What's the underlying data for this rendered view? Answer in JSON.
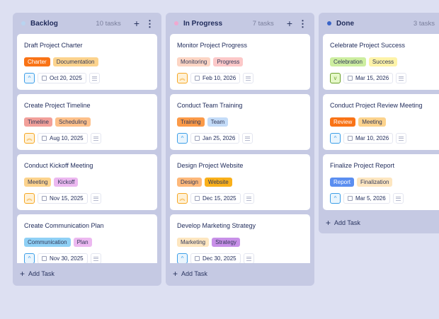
{
  "columns": [
    {
      "title": "Backlog",
      "count": "10 tasks",
      "dot": "#b8d4f0",
      "cards": [
        {
          "title": "Draft Project Charter",
          "tags": [
            {
              "label": "Charter",
              "bg": "#f97316",
              "fg": "#ffffff"
            },
            {
              "label": "Documentation",
              "bg": "#fcd38d",
              "fg": "#333a5a"
            }
          ],
          "priority": "up",
          "date": "Oct 20, 2025"
        },
        {
          "title": "Create Project Timeline",
          "tags": [
            {
              "label": "Timeline",
              "bg": "#f2a09a",
              "fg": "#333a5a"
            },
            {
              "label": "Scheduling",
              "bg": "#fdc08a",
              "fg": "#333a5a"
            }
          ],
          "priority": "double-up",
          "date": "Aug 10, 2025"
        },
        {
          "title": "Conduct Kickoff Meeting",
          "tags": [
            {
              "label": "Meeting",
              "bg": "#fcd38d",
              "fg": "#333a5a"
            },
            {
              "label": "Kickoff",
              "bg": "#ecb8f0",
              "fg": "#333a5a"
            }
          ],
          "priority": "double-up",
          "date": "Nov 15, 2025"
        },
        {
          "title": "Create Communication Plan",
          "tags": [
            {
              "label": "Communication",
              "bg": "#8fd0f5",
              "fg": "#333a5a"
            },
            {
              "label": "Plan",
              "bg": "#ecb8f0",
              "fg": "#333a5a"
            }
          ],
          "priority": "up",
          "date": "Nov 30, 2025"
        }
      ]
    },
    {
      "title": "In Progress",
      "count": "7 tasks",
      "dot": "#f0a8d0",
      "cards": [
        {
          "title": "Monitor Project Progress",
          "tags": [
            {
              "label": "Monitoring",
              "bg": "#fcd5c4",
              "fg": "#333a5a"
            },
            {
              "label": "Progress",
              "bg": "#fcc8c8",
              "fg": "#333a5a"
            }
          ],
          "priority": "double-up",
          "date": "Feb 10, 2026"
        },
        {
          "title": "Conduct Team Training",
          "tags": [
            {
              "label": "Training",
              "bg": "#fb9a48",
              "fg": "#333a5a"
            },
            {
              "label": "Team",
              "bg": "#c4dcf8",
              "fg": "#333a5a"
            }
          ],
          "priority": "up",
          "date": "Jan 25, 2026"
        },
        {
          "title": "Design Project Website",
          "tags": [
            {
              "label": "Design",
              "bg": "#fdb87a",
              "fg": "#333a5a"
            },
            {
              "label": "Website",
              "bg": "#f9b01a",
              "fg": "#333a5a"
            }
          ],
          "priority": "double-up",
          "date": "Dec 15, 2025"
        },
        {
          "title": "Develop Marketing Strategy",
          "tags": [
            {
              "label": "Marketing",
              "bg": "#fde6c0",
              "fg": "#333a5a"
            },
            {
              "label": "Strategy",
              "bg": "#c890e8",
              "fg": "#333a5a"
            }
          ],
          "priority": "up",
          "date": "Dec 30, 2025"
        }
      ]
    },
    {
      "title": "Done",
      "count": "3 tasks",
      "dot": "#3a64c8",
      "cards": [
        {
          "title": "Celebrate Project Success",
          "tags": [
            {
              "label": "Celebration",
              "bg": "#cdeea0",
              "fg": "#333a5a"
            },
            {
              "label": "Success",
              "bg": "#fdf3a8",
              "fg": "#333a5a"
            }
          ],
          "priority": "down",
          "date": "Mar 15, 2026"
        },
        {
          "title": "Conduct Project Review Meeting",
          "tags": [
            {
              "label": "Review",
              "bg": "#f97316",
              "fg": "#ffffff"
            },
            {
              "label": "Meeting",
              "bg": "#fcd38d",
              "fg": "#333a5a"
            }
          ],
          "priority": "up",
          "date": "Mar 10, 2026"
        },
        {
          "title": "Finalize Project Report",
          "tags": [
            {
              "label": "Report",
              "bg": "#5b8ef0",
              "fg": "#ffffff"
            },
            {
              "label": "Finalization",
              "bg": "#fde6c0",
              "fg": "#333a5a"
            }
          ],
          "priority": "up",
          "date": "Mar 5, 2026"
        }
      ]
    }
  ],
  "add_task_label": "Add Task",
  "priority_styles": {
    "up": {
      "glyph": "^",
      "color": "#3b9ee8",
      "bg": "#eaf5fd"
    },
    "double-up": {
      "glyph": "︽",
      "color": "#f5a623",
      "bg": "#fff1d6"
    },
    "down": {
      "glyph": "v",
      "color": "#6aa02a",
      "bg": "#e6f8c8"
    }
  }
}
